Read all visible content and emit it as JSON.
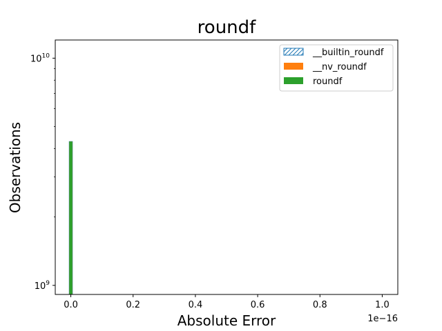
{
  "chart_data": {
    "type": "bar",
    "title": "roundf",
    "xlabel": "Absolute Error",
    "ylabel": "Observations",
    "x_offset_label": "1e−16",
    "y_scale": "log",
    "xlim": [
      -0.05,
      1.05
    ],
    "ylim_log10": [
      8.96,
      10.08
    ],
    "x_ticks": [
      {
        "value": 0.0,
        "label": "0.0"
      },
      {
        "value": 0.2,
        "label": "0.2"
      },
      {
        "value": 0.4,
        "label": "0.4"
      },
      {
        "value": 0.6,
        "label": "0.6"
      },
      {
        "value": 0.8,
        "label": "0.8"
      },
      {
        "value": 1.0,
        "label": "1.0"
      }
    ],
    "y_ticks": [
      {
        "exp": 9,
        "base": "10",
        "sup": "9"
      },
      {
        "exp": 10,
        "base": "10",
        "sup": "10"
      }
    ],
    "bin_width": 0.01,
    "series": [
      {
        "name": "__builtin_roundf",
        "color": "#1f77b4",
        "style": "hatched",
        "bins": [
          {
            "x": 0.0,
            "count": 4294967296
          }
        ]
      },
      {
        "name": "__nv_roundf",
        "color": "#ff7f0e",
        "style": "filled",
        "bins": [
          {
            "x": 0.0,
            "count": 4294967296
          }
        ]
      },
      {
        "name": "roundf",
        "color": "#2ca02c",
        "style": "filled",
        "bins": [
          {
            "x": 0.0,
            "count": 4294967296
          }
        ]
      }
    ],
    "legend_position": "top-right",
    "grid": false
  }
}
